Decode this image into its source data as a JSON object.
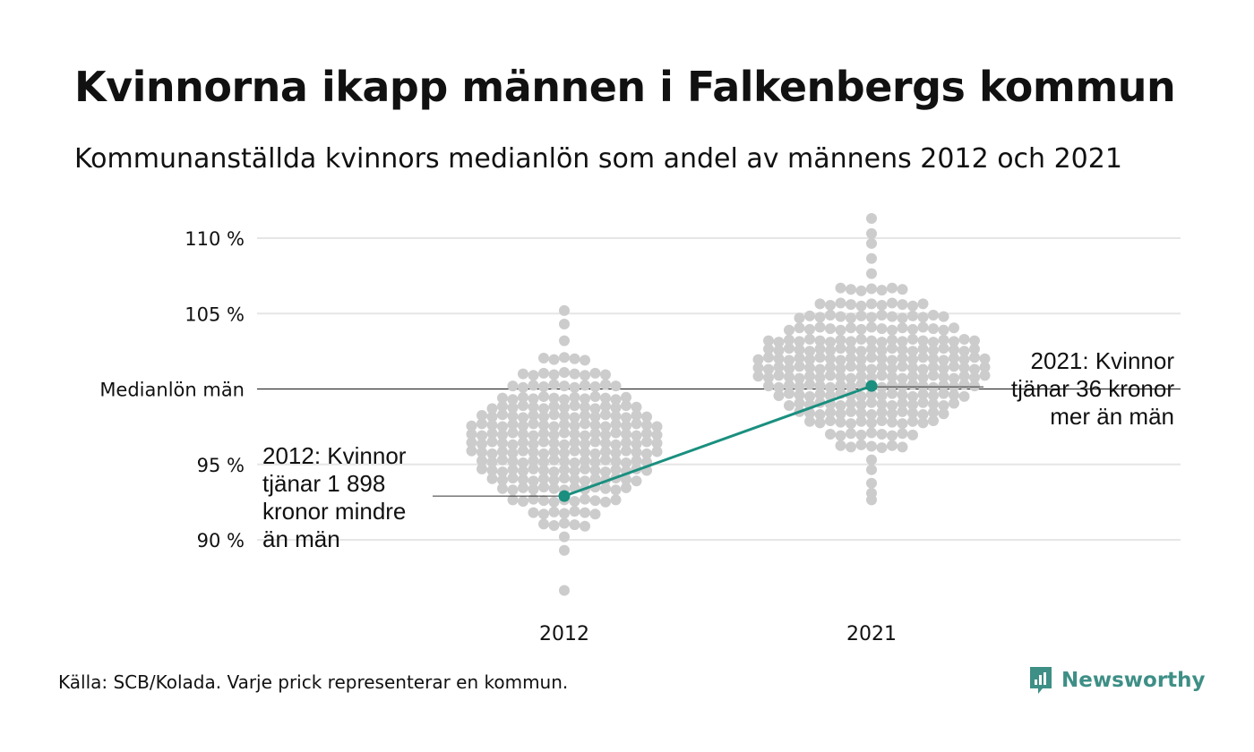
{
  "title": "Kvinnorna ikapp männen i Falkenbergs kommun",
  "subtitle": "Kommunanställda kvinnors medianlön som andel av männens 2012 och 2021",
  "source": "Källa: SCB/Kolada. Varje prick representerar en kommun.",
  "brand": {
    "name": "Newsworthy",
    "icon": "newsworthy-logo-icon",
    "color": "#3e8f86"
  },
  "colors": {
    "dots": "#cccccc",
    "highlight": "#1a8f7f",
    "grid": "#e6e6e6",
    "reference": "#333333"
  },
  "chart_data": {
    "type": "scatter",
    "subtype": "beeswarm",
    "categories": [
      "2012",
      "2021"
    ],
    "ylim": [
      86,
      111
    ],
    "y_ticks": [
      {
        "value": 110,
        "label": "110 %"
      },
      {
        "value": 105,
        "label": "105 %"
      },
      {
        "value": 100,
        "label": "Medianlön män"
      },
      {
        "value": 95,
        "label": "95 %"
      },
      {
        "value": 90,
        "label": "90 %"
      }
    ],
    "reference_line": {
      "value": 100
    },
    "grid": true,
    "series": [
      {
        "values": [
          [
            2012,
            105.2
          ],
          [
            2012,
            104.4
          ],
          [
            2012,
            103.2
          ],
          [
            2012,
            102.0
          ],
          [
            2012,
            101.0
          ],
          [
            2012,
            100.2
          ],
          [
            2012,
            99.4
          ],
          [
            2012,
            98.8
          ],
          [
            2012,
            98.2
          ],
          [
            2012,
            97.6
          ],
          [
            2012,
            97.0
          ],
          [
            2012,
            96.4
          ],
          [
            2012,
            95.8
          ],
          [
            2012,
            95.2
          ],
          [
            2012,
            94.6
          ],
          [
            2012,
            94.0
          ],
          [
            2012,
            93.4
          ],
          [
            2012,
            92.6
          ],
          [
            2012,
            91.8
          ],
          [
            2012,
            91.0
          ],
          [
            2012,
            90.2
          ],
          [
            2012,
            89.4
          ],
          [
            2012,
            86.6
          ],
          [
            2021,
            111.4
          ],
          [
            2021,
            110.4
          ],
          [
            2021,
            109.6
          ],
          [
            2021,
            108.6
          ],
          [
            2021,
            107.6
          ],
          [
            2021,
            106.6
          ],
          [
            2021,
            105.6
          ],
          [
            2021,
            104.8
          ],
          [
            2021,
            104.0
          ],
          [
            2021,
            103.2
          ],
          [
            2021,
            102.6
          ],
          [
            2021,
            102.0
          ],
          [
            2021,
            101.4
          ],
          [
            2021,
            100.8
          ],
          [
            2021,
            100.2
          ],
          [
            2021,
            99.6
          ],
          [
            2021,
            99.0
          ],
          [
            2021,
            98.4
          ],
          [
            2021,
            97.8
          ],
          [
            2021,
            97.0
          ],
          [
            2021,
            96.2
          ],
          [
            2021,
            95.4
          ],
          [
            2021,
            94.6
          ],
          [
            2021,
            93.8
          ],
          [
            2021,
            93.0
          ],
          [
            2021,
            92.6
          ]
        ]
      },
      {
        "name": "Falkenberg",
        "values": [
          [
            2012,
            92.9
          ],
          [
            2021,
            100.2
          ]
        ]
      }
    ],
    "annotations": [
      {
        "lines": [
          "2012: Kvinnor",
          "tjänar 1 898",
          "kronor mindre",
          "än män"
        ]
      },
      {
        "lines": [
          "2021: Kvinnor",
          "tjänar 36 kronor",
          "mer än män"
        ]
      }
    ]
  }
}
